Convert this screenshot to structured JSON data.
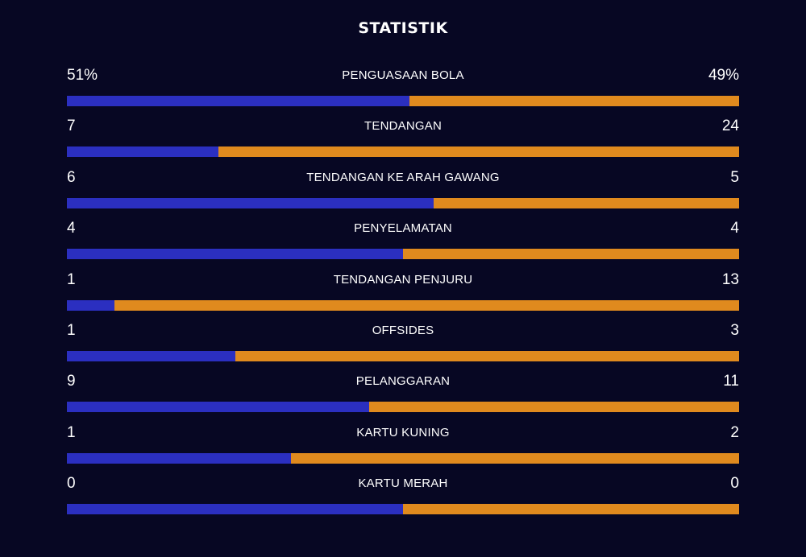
{
  "header": {
    "title": "STATISTIK"
  },
  "colors": {
    "background": "#070723",
    "home": "#2b2fc0",
    "away": "#e08a1e",
    "text": "#ffffff"
  },
  "stats": [
    {
      "label": "PENGUASAAN BOLA",
      "home": "51%",
      "away": "49%",
      "home_share": 0.51
    },
    {
      "label": "TENDANGAN",
      "home": "7",
      "away": "24",
      "home_share": 0.226
    },
    {
      "label": "TENDANGAN KE ARAH GAWANG",
      "home": "6",
      "away": "5",
      "home_share": 0.545
    },
    {
      "label": "PENYELAMATAN",
      "home": "4",
      "away": "4",
      "home_share": 0.5
    },
    {
      "label": "TENDANGAN PENJURU",
      "home": "1",
      "away": "13",
      "home_share": 0.071
    },
    {
      "label": "OFFSIDES",
      "home": "1",
      "away": "3",
      "home_share": 0.25
    },
    {
      "label": "PELANGGARAN",
      "home": "9",
      "away": "11",
      "home_share": 0.45
    },
    {
      "label": "KARTU KUNING",
      "home": "1",
      "away": "2",
      "home_share": 0.333
    },
    {
      "label": "KARTU MERAH",
      "home": "0",
      "away": "0",
      "home_share": 0.5
    }
  ]
}
